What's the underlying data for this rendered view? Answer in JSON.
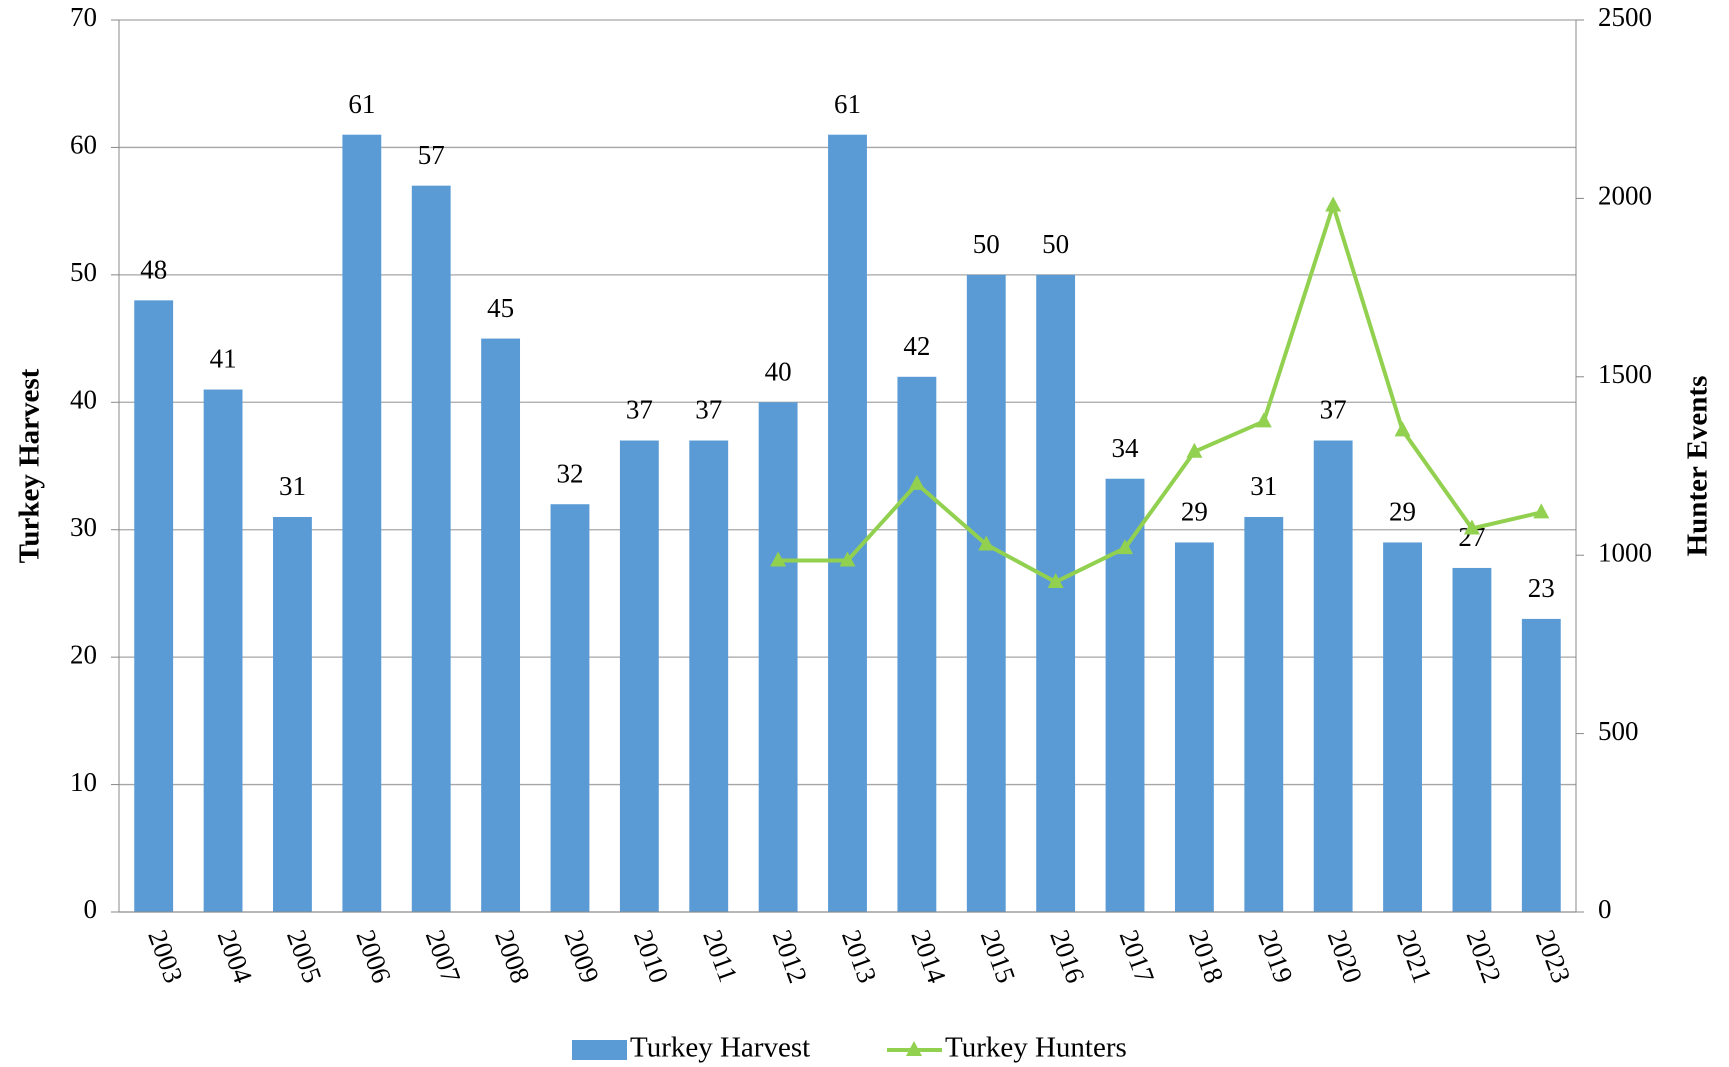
{
  "chart_data": {
    "type": "bar_line",
    "categories": [
      "2003",
      "2004",
      "2005",
      "2006",
      "2007",
      "2008",
      "2009",
      "2010",
      "2011",
      "2012",
      "2013",
      "2014",
      "2015",
      "2016",
      "2017",
      "2018",
      "2019",
      "2020",
      "2021",
      "2022",
      "2023"
    ],
    "series": [
      {
        "name": "Turkey Harvest",
        "type": "bar",
        "color": "#5b9bd5",
        "values": [
          48,
          41,
          31,
          61,
          57,
          45,
          32,
          37,
          37,
          40,
          61,
          42,
          50,
          50,
          34,
          29,
          31,
          37,
          29,
          27,
          23
        ]
      },
      {
        "name": "Turkey Hunters",
        "type": "line",
        "axis": "y2",
        "color": "#92d050",
        "values": [
          null,
          null,
          null,
          null,
          null,
          null,
          null,
          null,
          null,
          985,
          985,
          1200,
          1030,
          925,
          1020,
          1290,
          1375,
          1980,
          1350,
          1075,
          1120
        ]
      }
    ],
    "ylabel": "Turkey Harvest",
    "y2label": "Hunter Events",
    "ylim": [
      0,
      70
    ],
    "yticks": [
      0,
      10,
      20,
      30,
      40,
      50,
      60,
      70
    ],
    "y2lim": [
      0,
      2500
    ],
    "y2ticks": [
      0,
      500,
      1000,
      1500,
      2000,
      2500
    ],
    "grid": true,
    "legend": "bottom"
  }
}
